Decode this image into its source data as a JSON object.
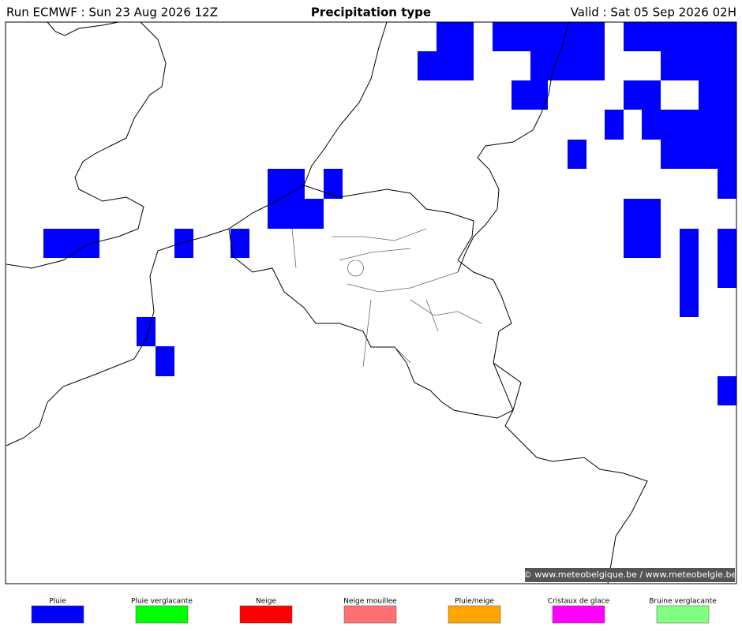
{
  "header": {
    "run": "Run ECMWF : Sun 23 Aug 2026 12Z",
    "title": "Precipitation type",
    "valid": "Valid : Sat 05 Sep 2026 02H"
  },
  "credit": "© www.meteobelgique.be / www.meteobelgie.be",
  "legend": [
    {
      "label": "Pluie",
      "color": "#0000ff"
    },
    {
      "label": "Pluie verglacante",
      "color": "#00ff00"
    },
    {
      "label": "Neige",
      "color": "#ff0000"
    },
    {
      "label": "Neige mouillee",
      "color": "#ff7070"
    },
    {
      "label": "Pluie/neige",
      "color": "#ffa500"
    },
    {
      "label": "Cristaux de glace",
      "color": "#ff00ff"
    },
    {
      "label": "Bruine verglacante",
      "color": "#80ff80"
    }
  ]
}
